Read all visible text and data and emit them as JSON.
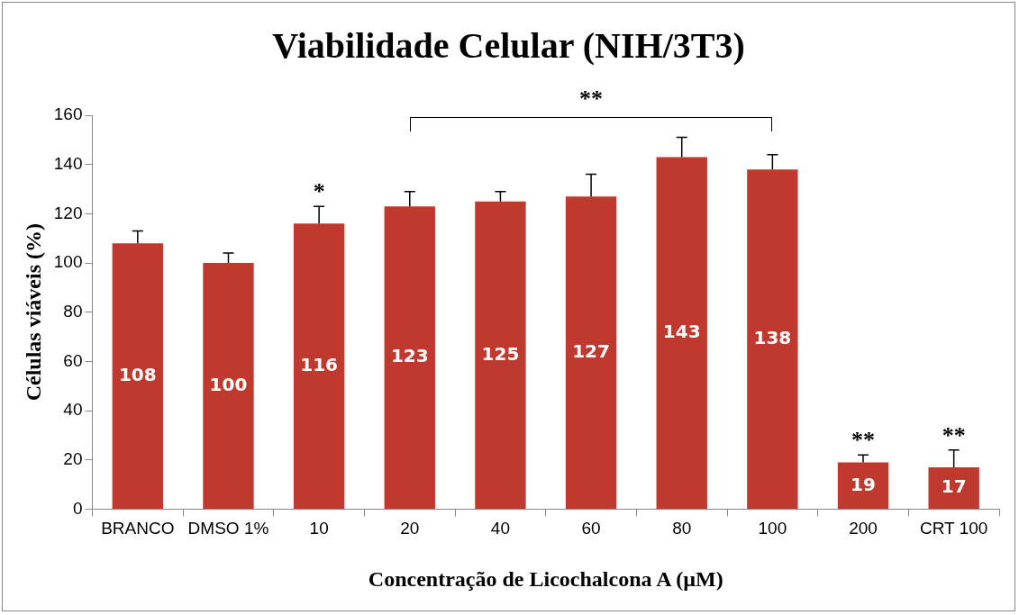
{
  "chart_data": {
    "type": "bar",
    "title": "Viabilidade Celular (NIH/3T3)",
    "xlabel": "Concentração de Licochalcona A (µM)",
    "ylabel": "Células viáveis (%)",
    "categories": [
      "BRANCO",
      "DMSO 1%",
      "10",
      "20",
      "40",
      "60",
      "80",
      "100",
      "200",
      "CRT 100"
    ],
    "values": [
      108,
      100,
      116,
      123,
      125,
      127,
      143,
      138,
      19,
      17
    ],
    "errors": [
      [
        108,
        113
      ],
      [
        100,
        104
      ],
      [
        116,
        123
      ],
      [
        123,
        129
      ],
      [
        125,
        129
      ],
      [
        127,
        136
      ],
      [
        143,
        151
      ],
      [
        138,
        144
      ],
      [
        19,
        22
      ],
      [
        17,
        24
      ]
    ],
    "color": "#c0392f",
    "data_labels": true,
    "ylim": [
      0,
      160
    ],
    "yticks": [
      0,
      20,
      40,
      60,
      80,
      100,
      120,
      140,
      160
    ],
    "grid": false,
    "legend": false,
    "annotations": [
      "**",
      {
        "text": "*",
        "x": "10",
        "y": 123
      },
      {
        "text": "**",
        "x": "200",
        "y": 22
      },
      {
        "text": "**",
        "x": "CRT 100",
        "y": 24
      }
    ]
  }
}
